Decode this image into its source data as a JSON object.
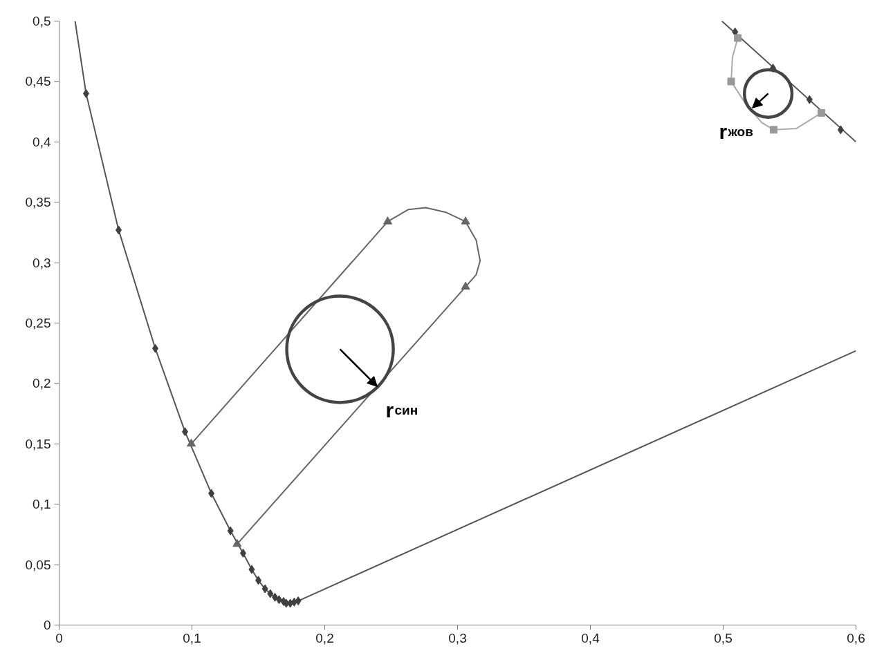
{
  "chart_data": {
    "type": "line",
    "xlim": [
      0,
      0.6
    ],
    "ylim": [
      0,
      0.5
    ],
    "xticks": [
      0,
      {
        "value": 0.1,
        "label": "0,1"
      },
      {
        "value": 0.2,
        "label": "0,2"
      },
      {
        "value": 0.3,
        "label": "0,3"
      },
      {
        "value": 0.4,
        "label": "0,4"
      },
      {
        "value": 0.5,
        "label": "0,5"
      },
      {
        "value": 0.6,
        "label": "0,6"
      }
    ],
    "yticks": [
      0,
      {
        "value": 0.05,
        "label": "0,05"
      },
      {
        "value": 0.1,
        "label": "0,1"
      },
      {
        "value": 0.15,
        "label": "0,15"
      },
      {
        "value": 0.2,
        "label": "0,2"
      },
      {
        "value": 0.25,
        "label": "0,25"
      },
      {
        "value": 0.3,
        "label": "0,3"
      },
      {
        "value": 0.35,
        "label": "0,35"
      },
      {
        "value": 0.4,
        "label": "0,4"
      },
      {
        "value": 0.45,
        "label": "0,45"
      },
      {
        "value": 0.5,
        "label": "0,5"
      }
    ],
    "grid": false,
    "line_style": "solid",
    "series": [
      {
        "marker": "none",
        "color": "#555555",
        "x": [
          0.012,
          0.0203,
          0.0448,
          0.0724,
          0.0948,
          0.1146,
          0.129,
          0.1385,
          0.145,
          0.15,
          0.155,
          0.159,
          0.1625,
          0.1656,
          0.169,
          0.171,
          0.174,
          0.177,
          0.18,
          0.6
        ],
        "values": [
          0.5,
          0.44,
          0.327,
          0.229,
          0.16,
          0.109,
          0.078,
          0.0595,
          0.046,
          0.037,
          0.03,
          0.026,
          0.023,
          0.021,
          0.0195,
          0.018,
          0.018,
          0.019,
          0.02,
          0.227
        ]
      },
      {
        "type": "scatter",
        "marker": "diamond",
        "color": "#404040",
        "x": [
          0.0203,
          0.0448,
          0.0724,
          0.0948,
          0.1146,
          0.129,
          0.1385,
          0.145,
          0.15,
          0.155,
          0.159,
          0.1625,
          0.1656,
          0.169,
          0.171,
          0.174,
          0.177,
          0.18
        ],
        "values": [
          0.44,
          0.327,
          0.229,
          0.16,
          0.109,
          0.078,
          0.0595,
          0.046,
          0.037,
          0.03,
          0.026,
          0.023,
          0.021,
          0.0195,
          0.018,
          0.018,
          0.019,
          0.02
        ]
      },
      {
        "marker": "none",
        "color": "#666666",
        "x": [
          0.0995,
          0.2474,
          0.263,
          0.276,
          0.2917,
          0.306,
          0.314,
          0.317,
          0.314,
          0.306,
          0.134
        ],
        "values": [
          0.15,
          0.334,
          0.344,
          0.3455,
          0.3415,
          0.334,
          0.3187,
          0.3015,
          0.29,
          0.28,
          0.067
        ]
      },
      {
        "type": "scatter",
        "marker": "triangle",
        "color": "#666666",
        "x": [
          0.0995,
          0.2474,
          0.306,
          0.306,
          0.134
        ],
        "values": [
          0.15,
          0.334,
          0.334,
          0.28,
          0.067
        ]
      },
      {
        "marker": "none",
        "color": "#555555",
        "x": [
          0.499,
          0.6
        ],
        "values": [
          0.5,
          0.4
        ]
      },
      {
        "type": "scatter",
        "marker": "diamond",
        "color": "#404040",
        "x": [
          0.509,
          0.5375,
          0.565,
          0.5885
        ],
        "values": [
          0.491,
          0.461,
          0.435,
          0.41
        ]
      },
      {
        "marker": "none",
        "color": "#aaaaaa",
        "x": [
          0.511,
          0.507,
          0.506,
          0.516,
          0.529,
          0.538,
          0.555,
          0.574
        ],
        "values": [
          0.486,
          0.47,
          0.45,
          0.433,
          0.416,
          0.41,
          0.411,
          0.424
        ]
      },
      {
        "type": "scatter",
        "marker": "square",
        "color": "#999999",
        "x": [
          0.511,
          0.506,
          0.538,
          0.574
        ],
        "values": [
          0.486,
          0.45,
          0.41,
          0.424
        ]
      },
      {
        "type": "bubble",
        "color": "#444444",
        "x": [
          0.2115,
          0.5339
        ],
        "values": [
          0.2283,
          0.44
        ],
        "sizes": [
          1,
          0.2
        ]
      }
    ],
    "annotations": [
      {
        "text": "r$_{син}$",
        "x": 0.2396,
        "y": 0.1974
      },
      {
        "text": "r$_{жов}$",
        "x": 0.5219,
        "y": 0.428
      }
    ]
  }
}
